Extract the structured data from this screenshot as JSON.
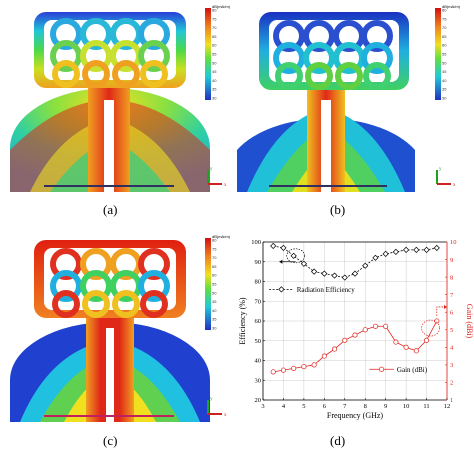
{
  "captions": [
    "(a)",
    "(b)",
    "(c)",
    "(d)"
  ],
  "colorbar": {
    "unit": "dB(mA/m)",
    "ticks": [
      "80",
      "75",
      "70",
      "65",
      "60",
      "55",
      "50",
      "45",
      "40",
      "35",
      "30"
    ]
  },
  "axis_triad": {
    "y": "y",
    "x": "x"
  },
  "colors": {
    "efficiency": "#000000",
    "gain": "#e0201a"
  },
  "chart_data": {
    "type": "line",
    "xlabel": "Frequency (GHz)",
    "ylabel": "Efficiency (%)",
    "y2label": "Gain (dBi)",
    "xlim": [
      3,
      12
    ],
    "ylim": [
      20,
      100
    ],
    "y2lim": [
      1,
      10
    ],
    "xticks": [
      "3",
      "4",
      "5",
      "6",
      "7",
      "8",
      "9",
      "10",
      "11",
      "12"
    ],
    "yticks": [
      "20",
      "30",
      "40",
      "50",
      "60",
      "70",
      "80",
      "90",
      "100"
    ],
    "y2ticks": [
      "1",
      "2",
      "3",
      "4",
      "5",
      "6",
      "7",
      "8",
      "9",
      "10"
    ],
    "grid": true,
    "series": [
      {
        "name": "Radiation Efficiency",
        "axis": "left",
        "marker": "diamond",
        "x": [
          3.5,
          4.0,
          4.5,
          5.0,
          5.5,
          6.0,
          6.5,
          7.0,
          7.5,
          8.0,
          8.5,
          9.0,
          9.5,
          10.0,
          10.5,
          11.0,
          11.5
        ],
        "y": [
          98,
          97,
          93,
          89,
          85,
          84,
          83,
          82,
          84,
          88,
          92,
          94,
          95,
          96,
          96,
          96,
          97
        ]
      },
      {
        "name": "Gain (dBi)",
        "axis": "right",
        "marker": "circle",
        "x": [
          3.5,
          4.0,
          4.5,
          5.0,
          5.5,
          6.0,
          6.5,
          7.0,
          7.5,
          8.0,
          8.5,
          9.0,
          9.5,
          10.0,
          10.5,
          11.0,
          11.5
        ],
        "y": [
          2.6,
          2.7,
          2.8,
          2.9,
          3.0,
          3.5,
          3.9,
          4.4,
          4.7,
          5.0,
          5.2,
          5.2,
          4.3,
          4.0,
          3.8,
          4.4,
          5.5
        ]
      }
    ]
  }
}
